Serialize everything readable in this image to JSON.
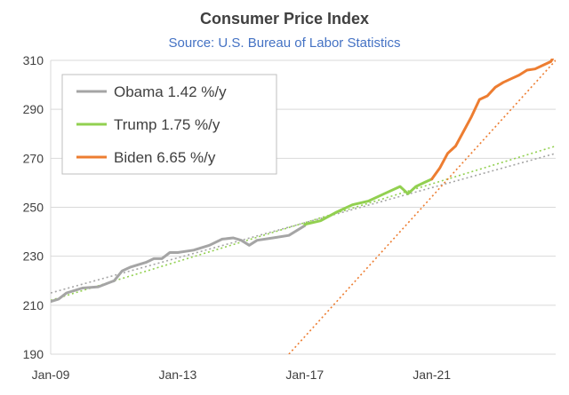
{
  "chart_data": {
    "type": "line",
    "title": "Consumer Price Index",
    "subtitle": "Source: U.S. Bureau of Labor Statistics",
    "xlabel": "",
    "ylabel": "",
    "xlim": [
      2009.0,
      2024.9
    ],
    "ylim": [
      190,
      310
    ],
    "yticks": [
      190,
      210,
      230,
      250,
      270,
      290,
      310
    ],
    "xticks": [
      {
        "label": "Jan-09",
        "value": 2009.0
      },
      {
        "label": "Jan-13",
        "value": 2013.0
      },
      {
        "label": "Jan-17",
        "value": 2017.0
      },
      {
        "label": "Jan-21",
        "value": 2021.0
      }
    ],
    "grid": "horizontal",
    "legend": {
      "position": "top-left",
      "entries": [
        {
          "label": "Obama 1.42 %/y",
          "color": "#A5A5A5"
        },
        {
          "label": "Trump 1.75 %/y",
          "color": "#92D050"
        },
        {
          "label": "Biden 6.65 %/y",
          "color": "#ED7D31"
        }
      ]
    },
    "series": [
      {
        "name": "Obama",
        "color": "#A5A5A5",
        "x": [
          2009.0,
          2009.25,
          2009.5,
          2009.75,
          2010.0,
          2010.5,
          2011.0,
          2011.25,
          2011.5,
          2011.75,
          2012.0,
          2012.25,
          2012.5,
          2012.75,
          2013.0,
          2013.5,
          2014.0,
          2014.4,
          2014.75,
          2015.0,
          2015.25,
          2015.5,
          2016.0,
          2016.5,
          2017.0
        ],
        "y": [
          211.5,
          212.5,
          215.0,
          216.0,
          217.0,
          217.5,
          220.0,
          224.0,
          225.5,
          226.5,
          227.5,
          229.0,
          229.0,
          231.5,
          231.5,
          232.5,
          234.5,
          237.0,
          237.5,
          236.5,
          234.5,
          236.5,
          237.5,
          238.5,
          242.5
        ]
      },
      {
        "name": "Trump",
        "color": "#92D050",
        "x": [
          2017.0,
          2017.5,
          2018.0,
          2018.5,
          2019.0,
          2019.5,
          2020.0,
          2020.25,
          2020.5,
          2020.75,
          2021.0
        ],
        "y": [
          243.0,
          244.5,
          248.0,
          251.0,
          252.5,
          255.5,
          258.5,
          255.5,
          258.5,
          260.0,
          261.5
        ]
      },
      {
        "name": "Biden",
        "color": "#ED7D31",
        "x": [
          2021.0,
          2021.25,
          2021.5,
          2021.75,
          2022.0,
          2022.25,
          2022.5,
          2022.75,
          2023.0,
          2023.25,
          2023.5,
          2023.75,
          2024.0,
          2024.25,
          2024.5,
          2024.75,
          2024.9
        ],
        "y": [
          261.5,
          266.0,
          272.0,
          275.0,
          281.0,
          287.0,
          294.0,
          295.5,
          299.0,
          301.0,
          302.5,
          304.0,
          306.0,
          306.5,
          308.0,
          309.5,
          313.0
        ]
      }
    ],
    "trendlines": [
      {
        "name": "Obama trend",
        "color": "#A5A5A5",
        "style": "dotted",
        "x": [
          2009.0,
          2024.9
        ],
        "y": [
          215.0,
          272.0
        ]
      },
      {
        "name": "Trump trend",
        "color": "#92D050",
        "style": "dotted",
        "x": [
          2009.0,
          2024.9
        ],
        "y": [
          212.0,
          275.0
        ]
      },
      {
        "name": "Biden trend",
        "color": "#ED7D31",
        "style": "dotted",
        "x": [
          2016.5,
          2024.9
        ],
        "y": [
          190.0,
          310.0
        ]
      }
    ]
  }
}
